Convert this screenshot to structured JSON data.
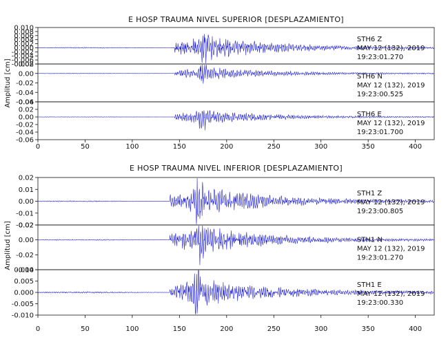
{
  "chart_data": [
    {
      "type": "line",
      "title": "E HOSP TRAUMA NIVEL SUPERIOR [DESPLAZAMIENTO]",
      "ylabel": "Amplitud [cm]",
      "xlim": [
        0,
        420
      ],
      "x_ticks": [
        0,
        50,
        100,
        150,
        200,
        250,
        300,
        350,
        400
      ],
      "trace_color": "#1f1fd6",
      "channels": [
        {
          "station": "STH6",
          "component": "Z",
          "date": "MAY 12 (132), 2019",
          "time": "19:23:01.270",
          "ylim": [
            -0.008,
            0.01
          ],
          "y_ticks": [
            "0.010",
            "0.008",
            "0.006",
            "0.004",
            "0.002",
            "0.000",
            "-0.002",
            "-0.004",
            "-0.006",
            "-0.008"
          ],
          "onset_s": 145,
          "peak_s": 178,
          "peak_amplitude": 0.009,
          "pre_event_noise": 0.0002,
          "coda_end_s": 420
        },
        {
          "station": "STH6",
          "component": "N",
          "date": "MAY 12 (132), 2019",
          "time": "19:23:00.525",
          "ylim": [
            -0.06,
            0.02
          ],
          "y_ticks": [
            "0.02",
            "0.00",
            "-0.02",
            "-0.04",
            "-0.06"
          ],
          "onset_s": 145,
          "peak_s": 175,
          "peak_amplitude": 0.02,
          "pre_event_noise": 0.0005,
          "coda_end_s": 420
        },
        {
          "station": "STH6",
          "component": "E",
          "date": "MAY 12 (132), 2019",
          "time": "19:23:01.700",
          "ylim": [
            -0.06,
            0.04
          ],
          "y_ticks": [
            "0.04",
            "0.02",
            "0.00",
            "-0.02",
            "-0.04",
            "-0.06"
          ],
          "onset_s": 145,
          "peak_s": 175,
          "peak_amplitude": 0.028,
          "pre_event_noise": 0.0005,
          "coda_end_s": 420
        }
      ]
    },
    {
      "type": "line",
      "title": "E HOSP TRAUMA NIVEL INFERIOR [DESPLAZAMIENTO]",
      "ylabel": "Amplitud [cm]",
      "xlim": [
        0,
        420
      ],
      "x_ticks": [
        0,
        50,
        100,
        150,
        200,
        250,
        300,
        350,
        400
      ],
      "trace_color": "#1f1fd6",
      "channels": [
        {
          "station": "STH1",
          "component": "Z",
          "date": "MAY 12 (132), 2019",
          "time": "19:23:00.805",
          "ylim": [
            -0.02,
            0.02
          ],
          "y_ticks": [
            "0.02",
            "0.01",
            "0.00",
            "-0.01",
            "-0.02"
          ],
          "onset_s": 140,
          "peak_s": 172,
          "peak_amplitude": 0.02,
          "pre_event_noise": 0.0004,
          "coda_end_s": 420
        },
        {
          "station": "STH1",
          "component": "N",
          "date": "MAY 12 (132), 2019",
          "time": "19:23:01.270",
          "ylim": [
            -0.04,
            0.02
          ],
          "y_ticks": [
            "0.02",
            "0.00",
            "-0.02",
            "-0.04"
          ],
          "onset_s": 140,
          "peak_s": 172,
          "peak_amplitude": 0.028,
          "pre_event_noise": 0.0006,
          "coda_end_s": 420
        },
        {
          "station": "STH1",
          "component": "E",
          "date": "MAY 12 (132), 2019",
          "time": "19:23:00.330",
          "ylim": [
            -0.01,
            0.01
          ],
          "y_ticks": [
            "0.010",
            "0.005",
            "0.000",
            "-0.005",
            "-0.010"
          ],
          "onset_s": 140,
          "peak_s": 170,
          "peak_amplitude": 0.009,
          "pre_event_noise": 0.0003,
          "coda_end_s": 420
        }
      ]
    }
  ]
}
